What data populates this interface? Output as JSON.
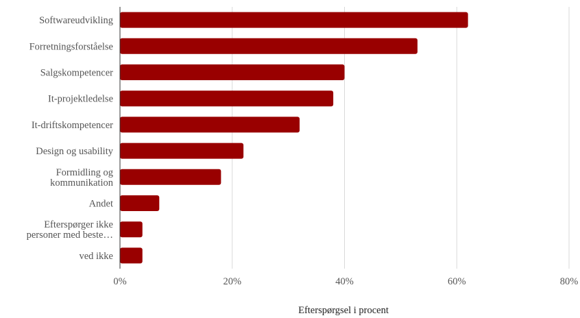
{
  "chart_data": {
    "type": "bar",
    "orientation": "horizontal",
    "categories": [
      [
        "Softwareudvikling"
      ],
      [
        "Forretningsforståelse"
      ],
      [
        "Salgskompetencer"
      ],
      [
        "It-projektledelse"
      ],
      [
        "It-driftskompetencer"
      ],
      [
        "Design og usability"
      ],
      [
        "Formidling og",
        "kommunikation"
      ],
      [
        "Andet"
      ],
      [
        "Efterspørger ikke",
        "personer med beste…"
      ],
      [
        "ved ikke"
      ]
    ],
    "values": [
      62,
      53,
      40,
      38,
      32,
      22,
      18,
      7,
      4,
      4
    ],
    "xticks": [
      "0%",
      "20%",
      "40%",
      "60%",
      "80%"
    ],
    "xtick_values": [
      0,
      20,
      40,
      60,
      80
    ],
    "xlim": [
      0,
      80
    ],
    "xlabel": "Efterspørgsel i procent",
    "bar_color": "#990000",
    "grid": "vertical"
  }
}
